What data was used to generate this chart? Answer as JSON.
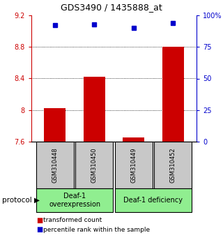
{
  "title": "GDS3490 / 1435888_at",
  "samples": [
    "GSM310448",
    "GSM310450",
    "GSM310449",
    "GSM310452"
  ],
  "bar_values": [
    8.02,
    8.42,
    7.655,
    8.8
  ],
  "percentile_values": [
    92,
    93,
    90,
    94
  ],
  "ylim_left": [
    7.6,
    9.2
  ],
  "ylim_right": [
    0,
    100
  ],
  "yticks_left": [
    7.6,
    8.0,
    8.4,
    8.8,
    9.2
  ],
  "ytick_labels_left": [
    "7.6",
    "8",
    "8.4",
    "8.8",
    "9.2"
  ],
  "yticks_right": [
    0,
    25,
    50,
    75,
    100
  ],
  "ytick_labels_right": [
    "0",
    "25",
    "50",
    "75",
    "100%"
  ],
  "bar_color": "#cc0000",
  "dot_color": "#0000cc",
  "bg_color": "#ffffff",
  "sample_box_color": "#c8c8c8",
  "group1_label": "Deaf-1\noverexpression",
  "group2_label": "Deaf-1 deficiency",
  "group_color": "#90ee90",
  "protocol_label": "protocol",
  "legend_bar_label": "transformed count",
  "legend_dot_label": "percentile rank within the sample",
  "title_fontsize": 9,
  "tick_fontsize": 7,
  "sample_fontsize": 6,
  "group_fontsize": 7,
  "legend_fontsize": 6.5,
  "protocol_fontsize": 7.5
}
